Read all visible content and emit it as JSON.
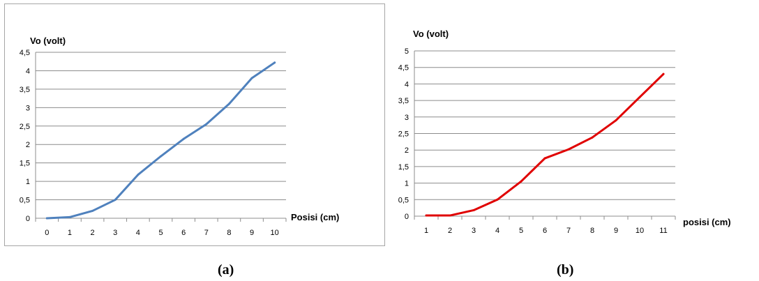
{
  "chart_data": [
    {
      "type": "line",
      "panel_label": "(a)",
      "ylabel": "Vo (volt)",
      "xlabel": "Posisi (cm)",
      "categories": [
        "0",
        "1",
        "2",
        "3",
        "4",
        "5",
        "6",
        "7",
        "8",
        "9",
        "10"
      ],
      "y_ticks": [
        "0",
        "0,5",
        "1",
        "1,5",
        "2",
        "2,5",
        "3",
        "3,5",
        "4",
        "4,5"
      ],
      "ylim": [
        0,
        4.5
      ],
      "grid": true,
      "series": [
        {
          "values": [
            0,
            0.03,
            0.2,
            0.5,
            1.18,
            1.68,
            2.15,
            2.55,
            3.1,
            3.8,
            4.22
          ],
          "color": "#4f81bd"
        }
      ]
    },
    {
      "type": "line",
      "panel_label": "(b)",
      "ylabel": "Vo (volt)",
      "xlabel": "posisi (cm)",
      "categories": [
        "1",
        "2",
        "3",
        "4",
        "5",
        "6",
        "7",
        "8",
        "9",
        "10",
        "11"
      ],
      "y_ticks": [
        "0",
        "0,5",
        "1",
        "1,5",
        "2",
        "2,5",
        "3",
        "3,5",
        "4",
        "4,5",
        "5"
      ],
      "ylim": [
        0,
        5
      ],
      "grid": true,
      "series": [
        {
          "values": [
            0.02,
            0.02,
            0.18,
            0.5,
            1.05,
            1.75,
            2.02,
            2.38,
            2.9,
            3.6,
            4.3
          ],
          "color": "#e00000"
        }
      ]
    }
  ]
}
